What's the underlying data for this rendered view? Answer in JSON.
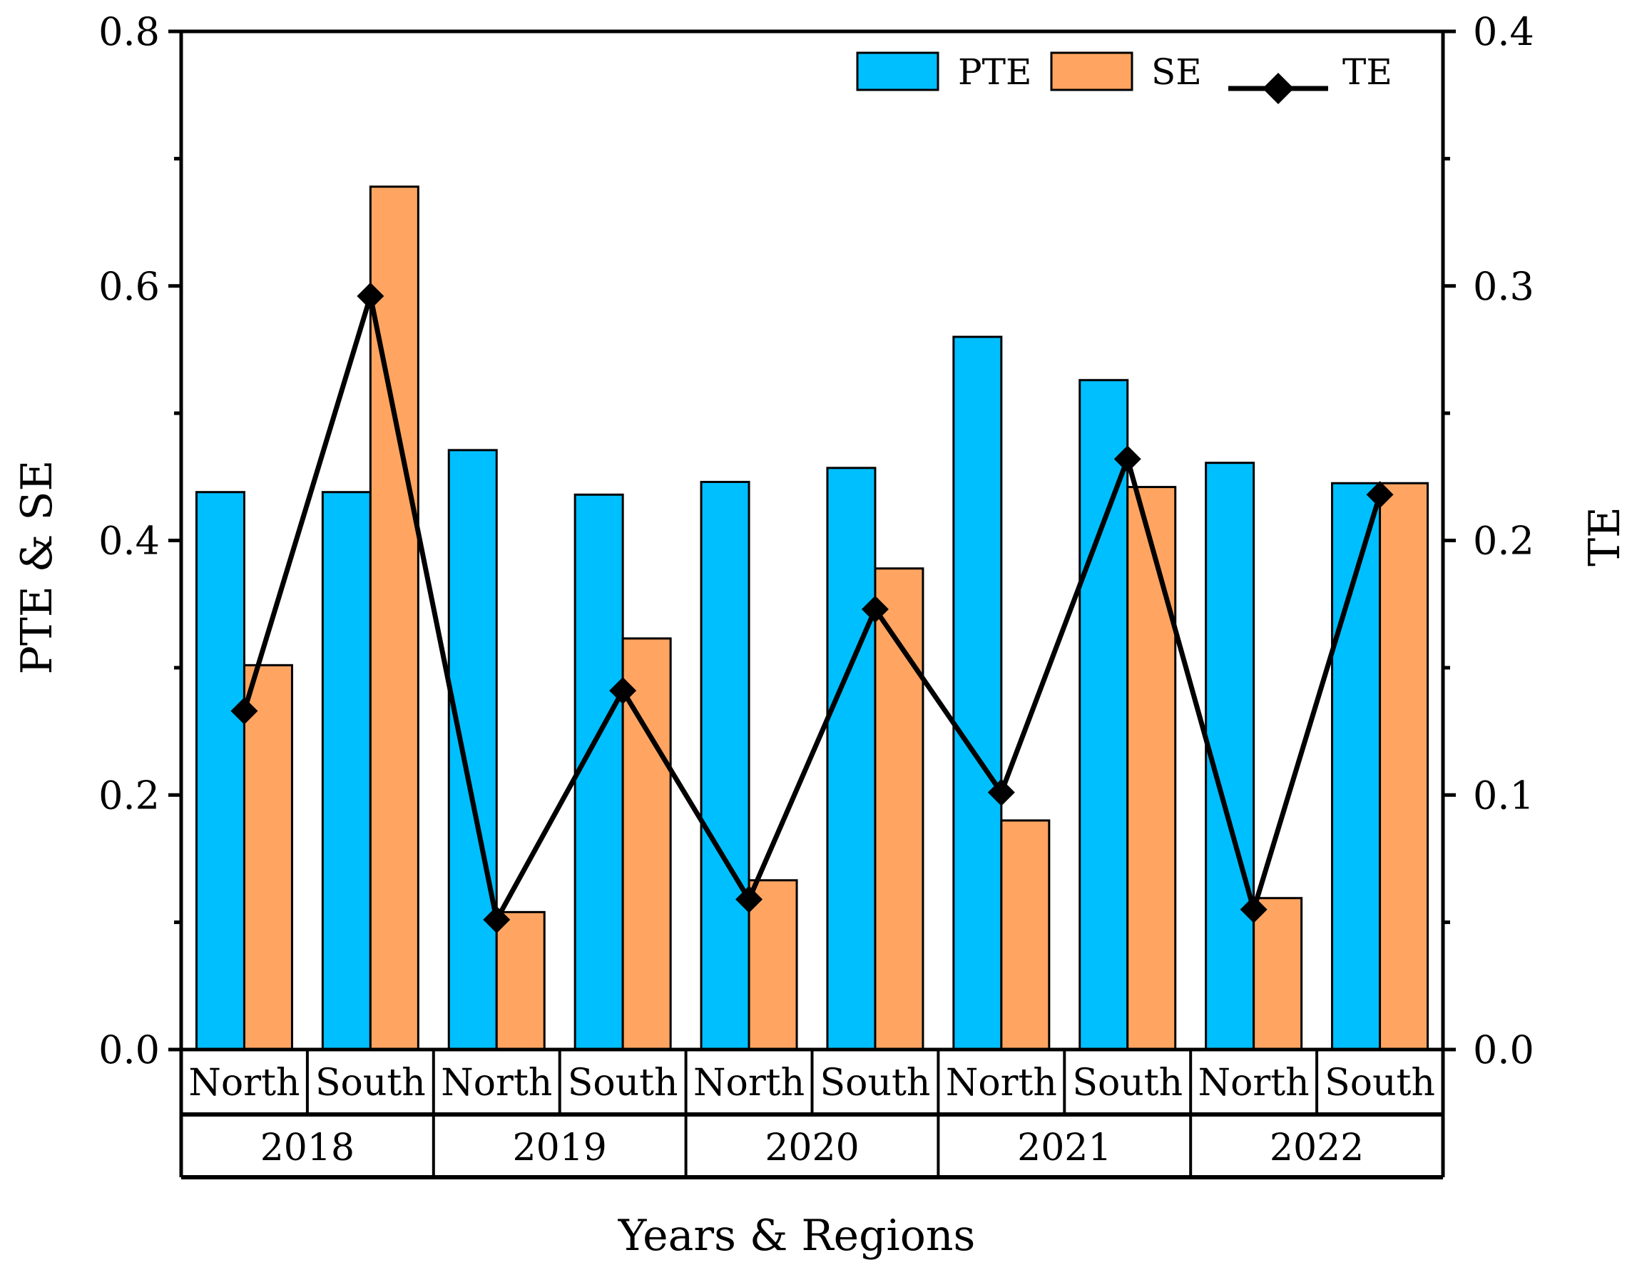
{
  "chart_data": {
    "type": "bar",
    "title": "",
    "xlabel": "Years & Regions",
    "ylabel": "PTE & SE",
    "y2label": "TE",
    "ylim": [
      0,
      0.8
    ],
    "y2lim": [
      0,
      0.4
    ],
    "yticks": [
      "0.0",
      "0.2",
      "0.4",
      "0.6",
      "0.8"
    ],
    "y2ticks": [
      "0.0",
      "0.1",
      "0.2",
      "0.3",
      "0.4"
    ],
    "groups": [
      "2018",
      "2019",
      "2020",
      "2021",
      "2022"
    ],
    "categories": [
      "North",
      "South",
      "North",
      "South",
      "North",
      "South",
      "North",
      "South",
      "North",
      "South"
    ],
    "legend_position": "top-right",
    "series": [
      {
        "name": "PTE",
        "type": "bar",
        "axis": "left",
        "color": "#00BFFF",
        "values": [
          0.438,
          0.438,
          0.471,
          0.436,
          0.446,
          0.457,
          0.56,
          0.526,
          0.461,
          0.445
        ]
      },
      {
        "name": "SE",
        "type": "bar",
        "axis": "left",
        "color": "#FFA561",
        "values": [
          0.302,
          0.678,
          0.108,
          0.323,
          0.133,
          0.378,
          0.18,
          0.442,
          0.119,
          0.445
        ]
      },
      {
        "name": "TE",
        "type": "line",
        "axis": "right",
        "color": "#000000",
        "marker": "diamond",
        "values": [
          0.133,
          0.296,
          0.051,
          0.141,
          0.059,
          0.173,
          0.101,
          0.232,
          0.055,
          0.218
        ]
      }
    ]
  }
}
